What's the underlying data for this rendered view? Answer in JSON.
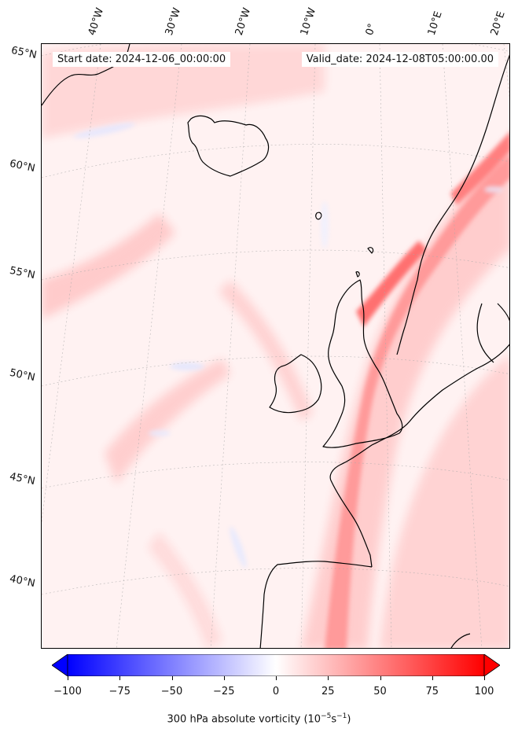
{
  "map": {
    "start_date": "Start date: 2024-12-06_00:00:00",
    "valid_date": "Valid_date: 2024-12-08T05:00:00.00",
    "field": "300 hPa absolute vorticity",
    "lon_labels": [
      "40°W",
      "30°W",
      "20°W",
      "10°W",
      "0°",
      "10°E",
      "20°E"
    ],
    "lat_labels": [
      "65°N",
      "60°N",
      "55°N",
      "50°N",
      "45°N",
      "40°N"
    ],
    "colors": {
      "negative_max": "#0000ff",
      "zero": "#ffffff",
      "positive_max": "#ff0000",
      "coastline": "#000000",
      "gridline": "#aaaaaa"
    }
  },
  "colorbar": {
    "min": -100,
    "max": 100,
    "extend": "both",
    "ticks": [
      "−100",
      "−75",
      "−50",
      "−25",
      "0",
      "25",
      "50",
      "75",
      "100"
    ],
    "tick_values": [
      -100,
      -75,
      -50,
      -25,
      0,
      25,
      50,
      75,
      100
    ],
    "label_prefix": "300 hPa absolute vorticity (10",
    "label_exp1": "−5",
    "label_mid": "s",
    "label_exp2": "−1",
    "label_suffix": ")"
  }
}
